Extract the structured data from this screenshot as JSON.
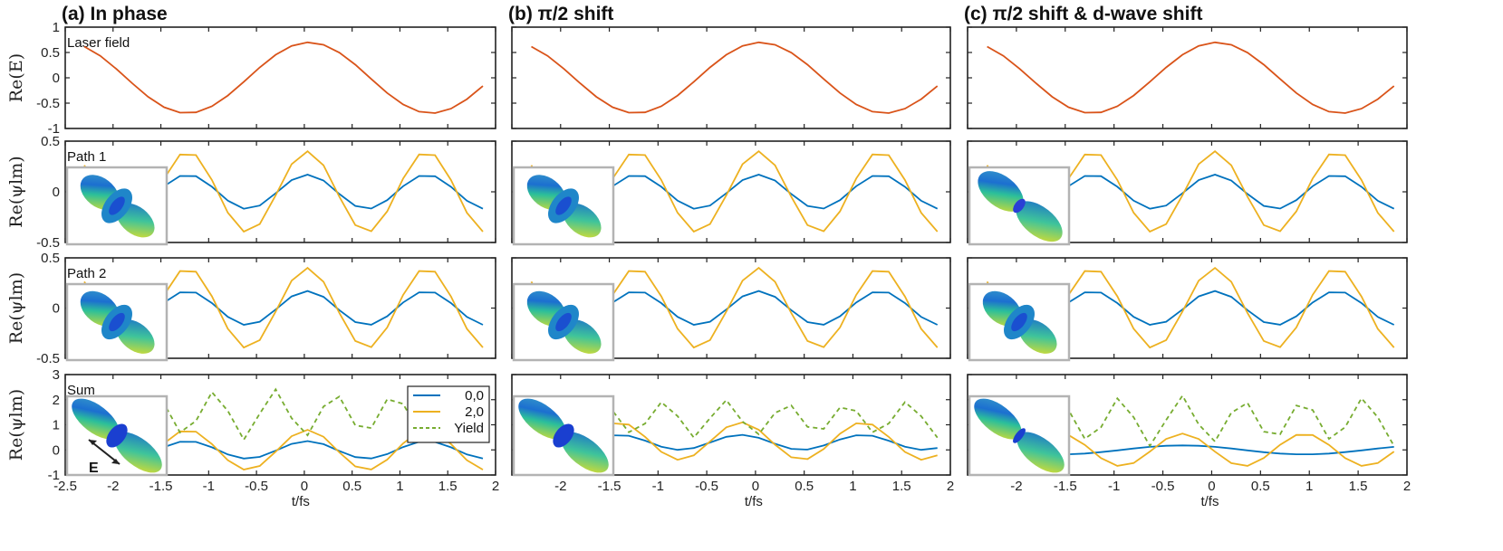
{
  "chart_data": {
    "type": "line",
    "columns": [
      {
        "title": "(a) In phase",
        "mode": "inphase"
      },
      {
        "title": "(b) π/2 shift",
        "mode": "shift"
      },
      {
        "title": "(c) π/2 shift & d-wave shift",
        "mode": "dshift"
      }
    ],
    "rows": [
      {
        "label": "Laser field",
        "ylabel": "Re(E)",
        "ylim": [
          -1,
          1
        ],
        "yticks": [
          "1",
          "0.5",
          "0",
          "-0.5",
          "-1"
        ],
        "ytick_values": [
          1,
          0.5,
          0,
          -0.5,
          -1
        ]
      },
      {
        "label": "Path 1",
        "ylabel": "Re(ψlm)",
        "ylim": [
          -0.5,
          0.5
        ],
        "yticks": [
          "0.5",
          "0",
          "-0.5"
        ],
        "ytick_values": [
          0.5,
          0,
          -0.5
        ]
      },
      {
        "label": "Path 2",
        "ylabel": "Re(ψlm)",
        "ylim": [
          -0.5,
          0.5
        ],
        "yticks": [
          "0.5",
          "0",
          "-0.5"
        ],
        "ytick_values": [
          0.5,
          0,
          -0.5
        ]
      },
      {
        "label": "Sum",
        "ylabel": "Re(ψlm)",
        "ylim": [
          -1,
          3
        ],
        "yticks": [
          "3",
          "2",
          "1",
          "0",
          "-1"
        ],
        "ytick_values": [
          3,
          2,
          1,
          0,
          -1
        ]
      }
    ],
    "xlabel": "t/fs",
    "xlim": [
      -2.5,
      2
    ],
    "xticks": [
      "-2.5",
      "-2",
      "-1.5",
      "-1",
      "-0.5",
      "0",
      "0.5",
      "1",
      "1.5",
      "2"
    ],
    "xtick_values": [
      -2.5,
      -2,
      -1.5,
      -1,
      -0.5,
      0,
      0.5,
      1,
      1.5,
      2
    ],
    "legend": {
      "placement": "top-right of Sum panel (a)",
      "entries": [
        {
          "name": "0,0",
          "color": "#0072BD",
          "style": "solid"
        },
        {
          "name": "2,0",
          "color": "#EDB120",
          "style": "solid"
        },
        {
          "name": "Yield",
          "color": "#77AC30",
          "style": "dashed"
        }
      ]
    },
    "inset_label": "E",
    "sampling": {
      "t_start": -2.3,
      "t_end": 2.0,
      "step": 0.1667
    },
    "series": {
      "laser": {
        "color": "#D95319",
        "amplitude": 0.7,
        "period_fs": 2.55,
        "peak_t": 0.05
      },
      "path": {
        "0,0": {
          "color": "#0072BD",
          "amplitude": 0.17,
          "period_fs": 1.25,
          "peak_t": 0.03
        },
        "2,0": {
          "color": "#EDB120",
          "amplitude": 0.4,
          "period_fs": 1.25,
          "peak_t": 0.03
        }
      },
      "sum_inphase": {
        "0,0": {
          "offset": 0.0,
          "amplitude": 0.35,
          "period_fs": 1.25,
          "peak_t": 0.03
        },
        "2,0": {
          "offset": 0.0,
          "amplitude": 0.8,
          "period_fs": 1.25,
          "peak_t": 0.03
        },
        "Yield": {
          "low": 0.35,
          "high": 2.5,
          "period_fs": 0.625
        }
      },
      "sum_shift": {
        "0,0": {
          "offset": 0.3,
          "amplitude": 0.3,
          "period_fs": 1.25,
          "peak_t": -0.15
        },
        "2,0": {
          "offset": 0.35,
          "amplitude": 0.75,
          "period_fs": 1.25,
          "peak_t": -0.15
        },
        "Yield": {
          "low": 0.45,
          "high": 2.05,
          "period_fs": 0.625
        }
      },
      "sum_dshift": {
        "0,0": {
          "offset": 0.0,
          "amplitude": 0.18,
          "period_fs": 2.5,
          "peak_t": -0.3
        },
        "2,0": {
          "offset": 0.0,
          "amplitude": 0.65,
          "period_fs": 1.25,
          "peak_t": -0.3
        },
        "Yield": {
          "low": 0.1,
          "high": 2.25,
          "period_fs": 0.625
        }
      }
    }
  }
}
